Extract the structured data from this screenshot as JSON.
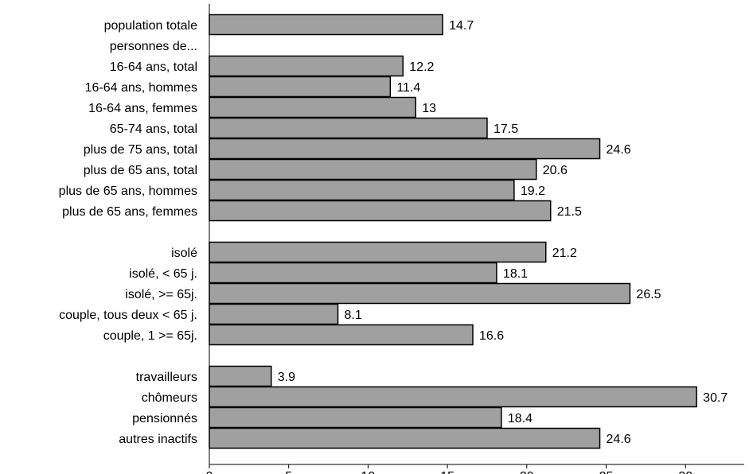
{
  "chart_data": {
    "type": "bar",
    "orientation": "horizontal",
    "categories": [
      "population totale",
      "personnes de...",
      "16-64 ans, total",
      "16-64 ans, hommes",
      "16-64 ans, femmes",
      "65-74 ans, total",
      "plus de 75 ans, total",
      "plus de 65 ans, total",
      "plus de 65 ans, hommes",
      "plus de 65 ans, femmes",
      "",
      "isolé",
      "isolé, < 65 j.",
      "isolé, >= 65j.",
      "couple, tous deux < 65 j.",
      "couple, 1 >= 65j.",
      "",
      "travailleurs",
      "chômeurs",
      "pensionnés",
      "autres inactifs"
    ],
    "values": [
      14.7,
      null,
      12.2,
      11.4,
      13,
      17.5,
      24.6,
      20.6,
      19.2,
      21.5,
      null,
      21.2,
      18.1,
      26.5,
      8.1,
      16.6,
      null,
      3.9,
      30.7,
      18.4,
      24.6
    ],
    "value_labels": [
      "14.7",
      "",
      "12.2",
      "11.4",
      "13",
      "17.5",
      "24.6",
      "20.6",
      "19.2",
      "21.5",
      "",
      "21.2",
      "18.1",
      "26.5",
      "8.1",
      "16.6",
      "",
      "3.9",
      "30.7",
      "18.4",
      "24.6"
    ],
    "xlim": [
      0,
      33.7
    ],
    "x_ticks": [
      0,
      5,
      10,
      15,
      20,
      25,
      30
    ],
    "title": "",
    "xlabel": "",
    "ylabel": "",
    "grid": false,
    "bar_color": "#a0a0a0",
    "bar_edge_color": "#000000"
  }
}
